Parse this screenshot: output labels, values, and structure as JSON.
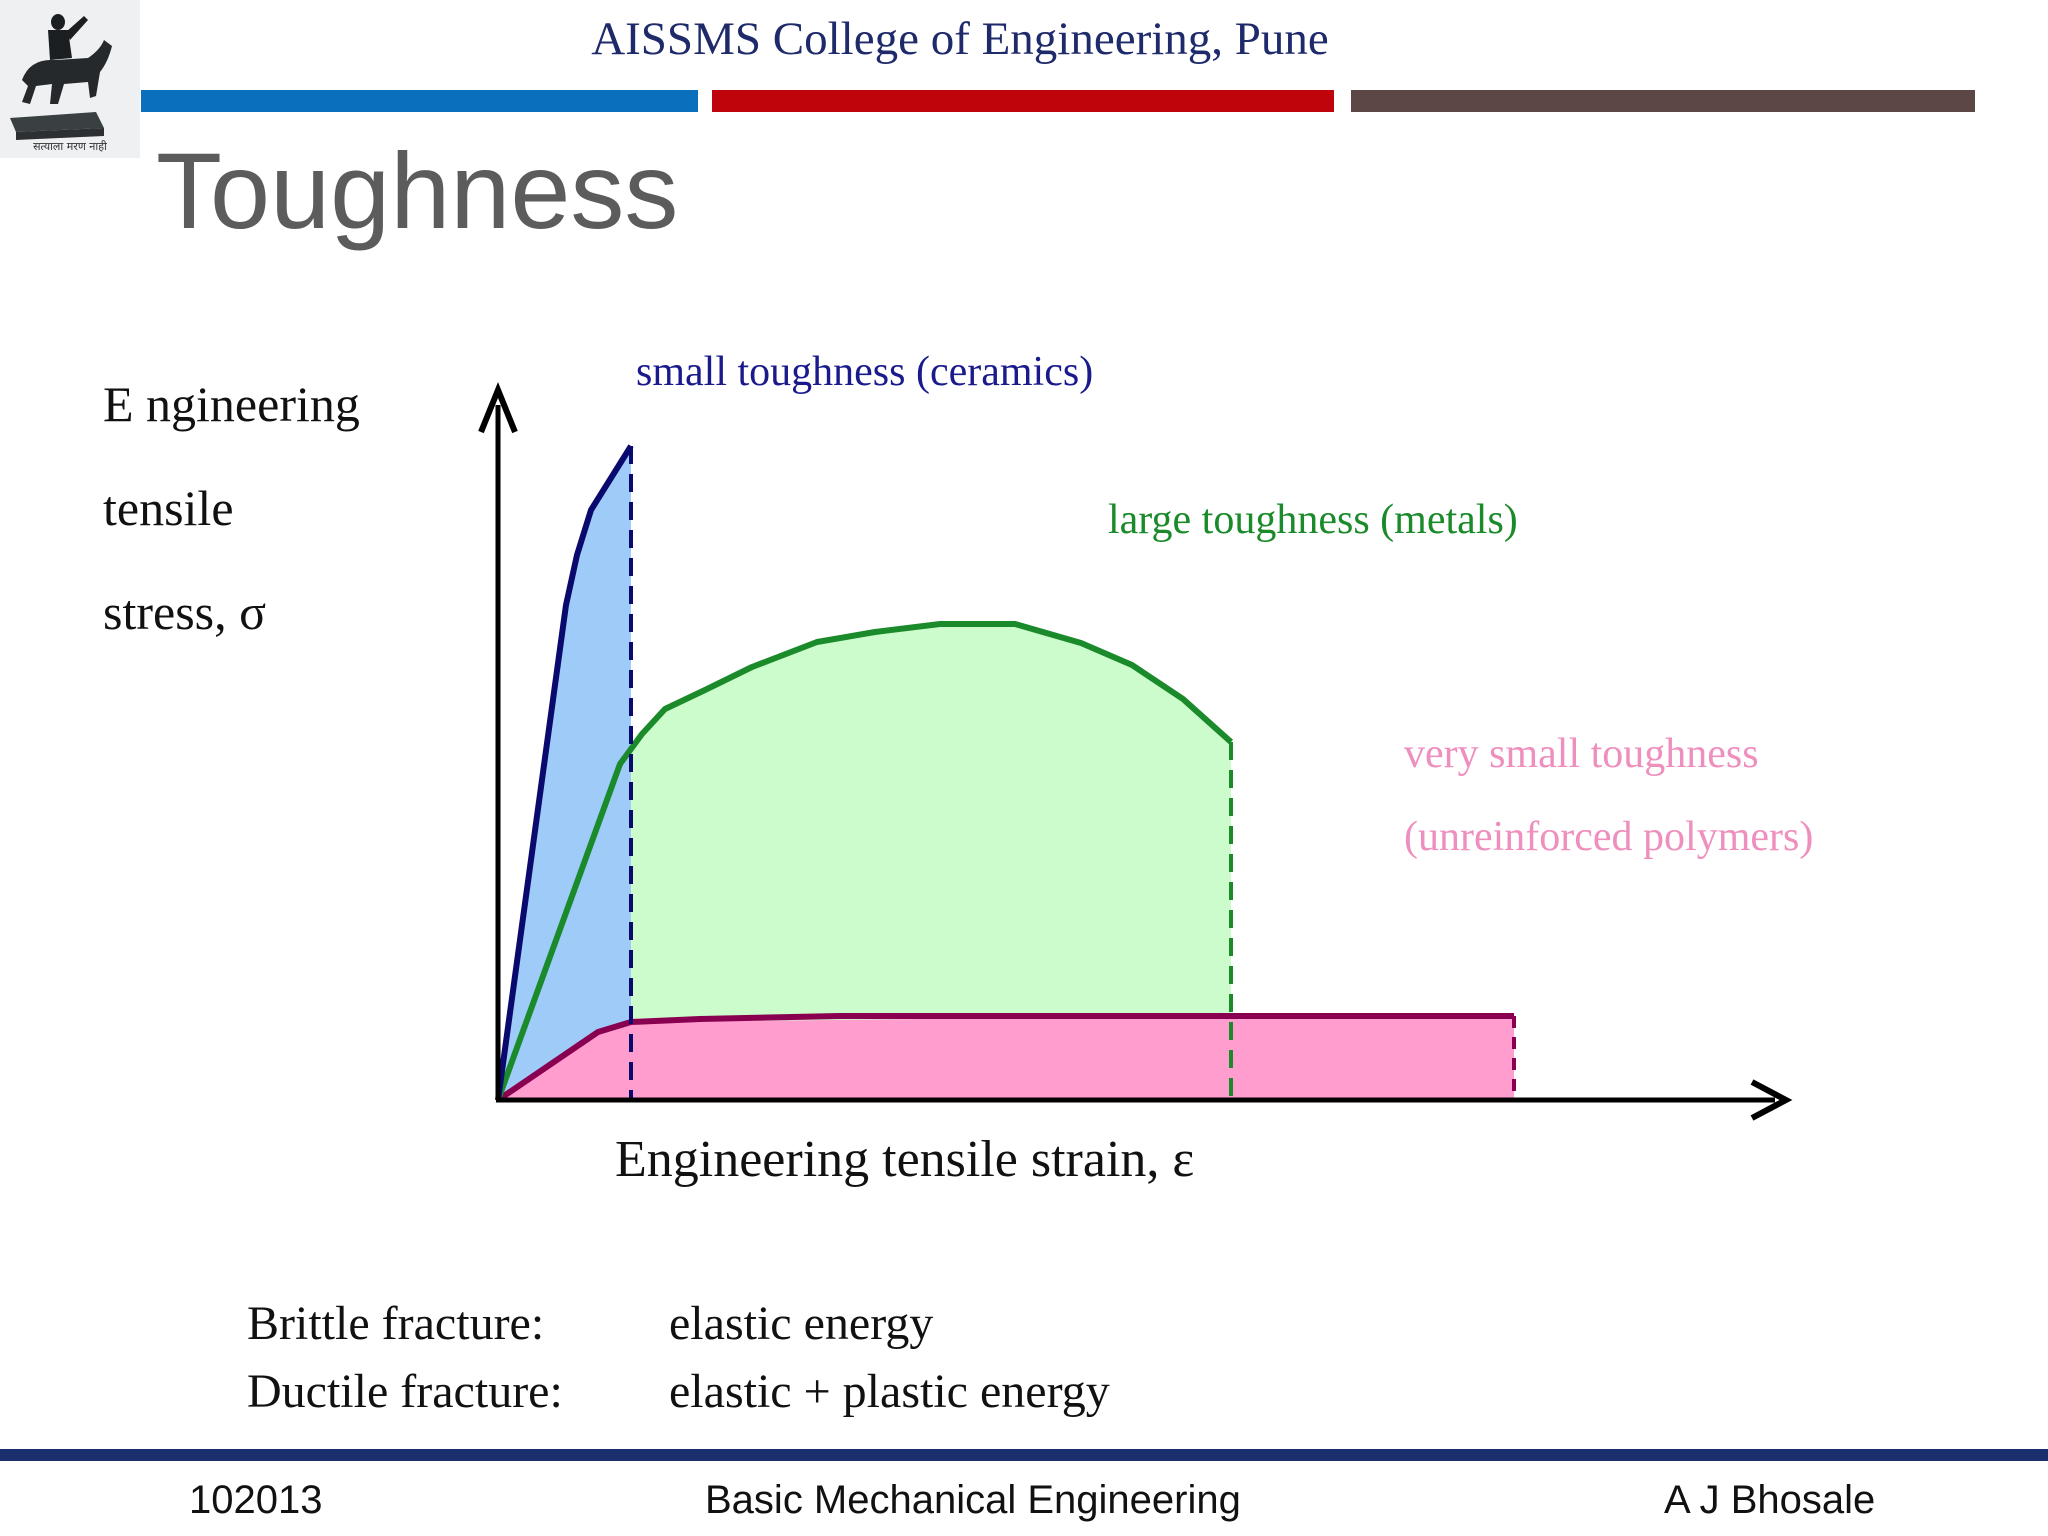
{
  "header": {
    "college_name": "AISSMS College of Engineering, Pune",
    "logo_motto": "सत्याला मरण नाही",
    "bar_colors": [
      "#0a70bd",
      "#c0040c",
      "#5c4646"
    ]
  },
  "slide": {
    "title": "Toughness"
  },
  "diagram": {
    "y_axis_label_lines": [
      "E ngineering",
      "tensile",
      "stress, σ"
    ],
    "x_axis_label": "Engineering tensile strain, ε",
    "curves": [
      {
        "name": "small toughness (ceramics)",
        "color": "#1a1a8c",
        "fill": "#9fcbf9"
      },
      {
        "name": "large toughness (metals)",
        "color": "#1a8a2a",
        "fill": "#ccfccc"
      },
      {
        "name_lines": [
          "very small toughness",
          "(unreinforced polymers)"
        ],
        "color": "#ee8fbe",
        "line_color": "#8a0050",
        "fill": "#ff9dcf"
      }
    ]
  },
  "fracture": {
    "brittle_label": "Brittle fracture:",
    "brittle_value": "elastic energy",
    "ductile_label": "Ductile fracture:",
    "ductile_value": "elastic + plastic energy"
  },
  "footer": {
    "code": "102013",
    "course": "Basic Mechanical Engineering",
    "author": "A J Bhosale",
    "line_color": "#1b2e6e"
  }
}
